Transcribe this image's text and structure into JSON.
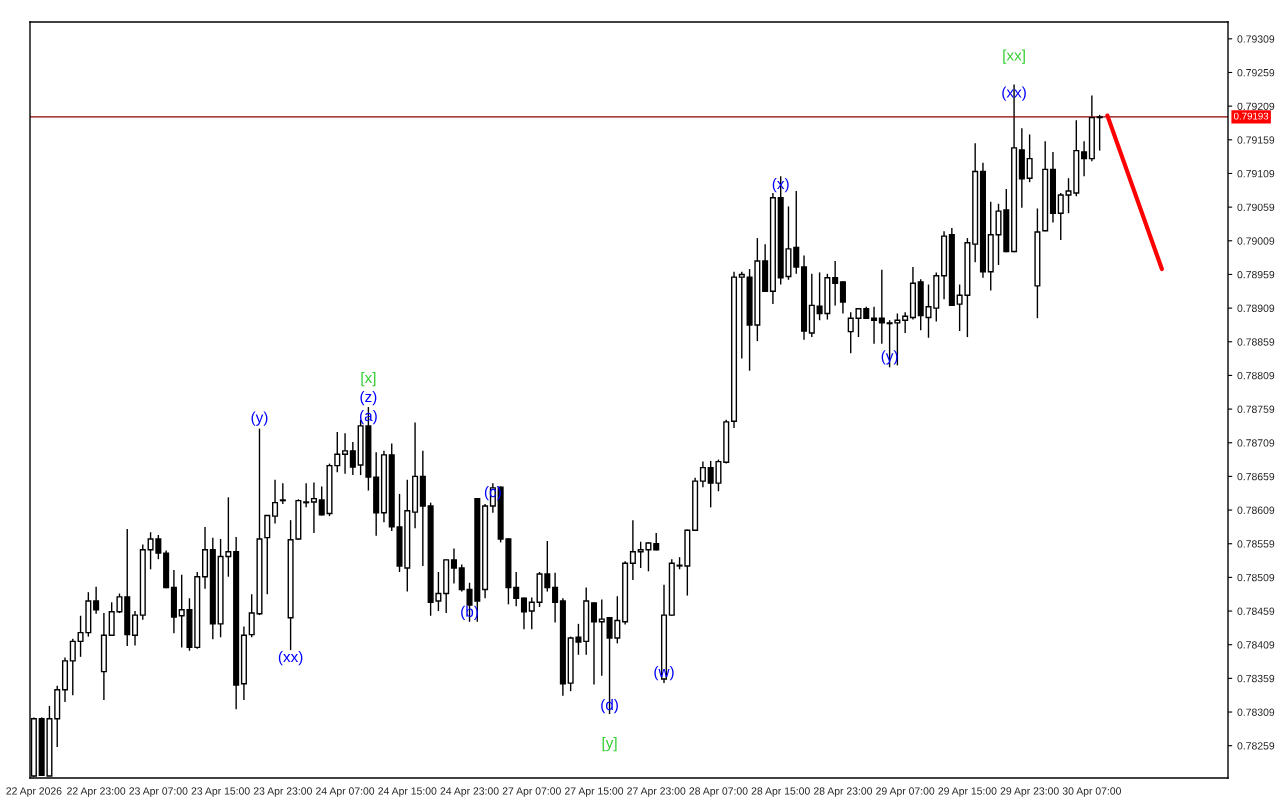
{
  "chart_data": {
    "type": "candlestick",
    "categories": [
      "22 Apr 2026",
      null,
      null,
      null,
      null,
      null,
      null,
      null,
      "22 Apr 23:00",
      null,
      null,
      null,
      null,
      null,
      null,
      null,
      "23 Apr 07:00",
      null,
      null,
      null,
      null,
      null,
      null,
      null,
      "23 Apr 15:00",
      null,
      null,
      null,
      null,
      null,
      null,
      null,
      "23 Apr 23:00",
      null,
      null,
      null,
      null,
      null,
      null,
      null,
      "24 Apr 07:00",
      null,
      null,
      null,
      null,
      null,
      null,
      null,
      "24 Apr 15:00",
      null,
      null,
      null,
      null,
      null,
      null,
      null,
      "24 Apr 23:00",
      null,
      null,
      null,
      null,
      null,
      null,
      null,
      "27 Apr 07:00",
      null,
      null,
      null,
      null,
      null,
      null,
      null,
      "27 Apr 15:00",
      null,
      null,
      null,
      null,
      null,
      null,
      null,
      "27 Apr 23:00",
      null,
      null,
      null,
      null,
      null,
      null,
      null,
      "28 Apr 07:00",
      null,
      null,
      null,
      null,
      null,
      null,
      null,
      "28 Apr 15:00",
      null,
      null,
      null,
      null,
      null,
      null,
      null,
      "28 Apr 23:00",
      null,
      null,
      null,
      null,
      null,
      null,
      null,
      "29 Apr 07:00",
      null,
      null,
      null,
      null,
      null,
      null,
      null,
      "29 Apr 15:00",
      null,
      null,
      null,
      null,
      null,
      null,
      null,
      "29 Apr 23:00",
      null,
      null,
      null,
      null,
      null,
      null,
      null,
      "30 Apr 07:00",
      null,
      null,
      null,
      null,
      null,
      null,
      null,
      null,
      null,
      null,
      null,
      null,
      null,
      null,
      null,
      null,
      null
    ],
    "ohlc": [
      [
        0.78214,
        0.78301,
        0.78213,
        0.78299
      ],
      [
        0.78299,
        0.78301,
        0.78214,
        0.78215
      ],
      [
        0.78214,
        0.78318,
        0.78214,
        0.78299
      ],
      [
        0.78299,
        0.78348,
        0.78257,
        0.78342
      ],
      [
        0.78342,
        0.7839,
        0.78324,
        0.78385
      ],
      [
        0.78385,
        0.78418,
        0.78334,
        0.78414
      ],
      [
        0.78414,
        0.78452,
        0.78391,
        0.78427
      ],
      [
        0.78427,
        0.78487,
        0.78421,
        0.78474
      ],
      [
        0.78474,
        0.78495,
        0.78455,
        0.78461
      ],
      [
        0.78369,
        0.78456,
        0.78327,
        0.78423
      ],
      [
        0.78423,
        0.78472,
        0.78423,
        0.78458
      ],
      [
        0.78458,
        0.78485,
        0.78456,
        0.7848
      ],
      [
        0.7848,
        0.78581,
        0.78407,
        0.78424
      ],
      [
        0.78423,
        0.78459,
        0.78408,
        0.78453
      ],
      [
        0.78453,
        0.78558,
        0.78446,
        0.7855
      ],
      [
        0.7855,
        0.78576,
        0.78521,
        0.78566
      ],
      [
        0.78566,
        0.78572,
        0.78536,
        0.78545
      ],
      [
        0.78545,
        0.78549,
        0.78493,
        0.78494
      ],
      [
        0.78494,
        0.7852,
        0.78426,
        0.7845
      ],
      [
        0.78452,
        0.78513,
        0.78405,
        0.78461
      ],
      [
        0.78461,
        0.78478,
        0.784,
        0.78405
      ],
      [
        0.78405,
        0.78517,
        0.78403,
        0.7851
      ],
      [
        0.7851,
        0.78584,
        0.78492,
        0.7855
      ],
      [
        0.7855,
        0.78568,
        0.78417,
        0.7844
      ],
      [
        0.7844,
        0.78566,
        0.7842,
        0.7854
      ],
      [
        0.7854,
        0.78628,
        0.7851,
        0.78547
      ],
      [
        0.78547,
        0.78569,
        0.78313,
        0.78349
      ],
      [
        0.78351,
        0.78436,
        0.78327,
        0.78423
      ],
      [
        0.78424,
        0.78484,
        0.7842,
        0.78456
      ],
      [
        0.78455,
        0.7873,
        0.78453,
        0.78566
      ],
      [
        0.78568,
        0.78601,
        0.78484,
        0.78601
      ],
      [
        0.786,
        0.78654,
        0.78589,
        0.7862
      ],
      [
        0.78624,
        0.78649,
        0.78618,
        0.78623
      ],
      [
        0.78449,
        0.78594,
        0.78401,
        0.78565
      ],
      [
        0.78566,
        0.78625,
        0.78565,
        0.78623
      ],
      [
        0.7862,
        0.78649,
        0.78613,
        0.78621
      ],
      [
        0.78621,
        0.7865,
        0.78575,
        0.78626
      ],
      [
        0.78624,
        0.78644,
        0.78601,
        0.78602
      ],
      [
        0.78604,
        0.78678,
        0.786,
        0.78675
      ],
      [
        0.78675,
        0.78725,
        0.78665,
        0.78692
      ],
      [
        0.78692,
        0.78723,
        0.78663,
        0.78697
      ],
      [
        0.78697,
        0.7871,
        0.78661,
        0.78673
      ],
      [
        0.78676,
        0.78743,
        0.78661,
        0.78734
      ],
      [
        0.78734,
        0.78762,
        0.78638,
        0.78658
      ],
      [
        0.78658,
        0.78695,
        0.78571,
        0.78605
      ],
      [
        0.78605,
        0.78697,
        0.78591,
        0.78691
      ],
      [
        0.78691,
        0.78708,
        0.78578,
        0.78584
      ],
      [
        0.78584,
        0.78633,
        0.78517,
        0.78526
      ],
      [
        0.78523,
        0.78654,
        0.78488,
        0.78608
      ],
      [
        0.78606,
        0.78739,
        0.78582,
        0.78659
      ],
      [
        0.78659,
        0.78697,
        0.78526,
        0.78615
      ],
      [
        0.78615,
        0.7862,
        0.78452,
        0.78472
      ],
      [
        0.78474,
        0.78517,
        0.78459,
        0.78485
      ],
      [
        0.78485,
        0.78536,
        0.78456,
        0.78535
      ],
      [
        0.78535,
        0.78552,
        0.785,
        0.78523
      ],
      [
        0.78523,
        0.78528,
        0.78488,
        0.78491
      ],
      [
        0.78491,
        0.78501,
        0.78443,
        0.78468
      ],
      [
        0.78626,
        0.78626,
        0.78443,
        0.78474
      ],
      [
        0.78491,
        0.78618,
        0.78478,
        0.78615
      ],
      [
        0.78615,
        0.78649,
        0.78605,
        0.78642
      ],
      [
        0.78643,
        0.78644,
        0.78561,
        0.78566
      ],
      [
        0.78566,
        0.78567,
        0.78469,
        0.78494
      ],
      [
        0.78494,
        0.78517,
        0.78466,
        0.78478
      ],
      [
        0.78478,
        0.78479,
        0.78432,
        0.78458
      ],
      [
        0.78459,
        0.78479,
        0.78432,
        0.78472
      ],
      [
        0.78472,
        0.78517,
        0.78465,
        0.78514
      ],
      [
        0.78514,
        0.78563,
        0.78488,
        0.78494
      ],
      [
        0.78494,
        0.78516,
        0.78442,
        0.78472
      ],
      [
        0.78474,
        0.78478,
        0.78333,
        0.78351
      ],
      [
        0.78352,
        0.78421,
        0.7834,
        0.78419
      ],
      [
        0.7842,
        0.7844,
        0.78394,
        0.78413
      ],
      [
        0.78414,
        0.78494,
        0.78394,
        0.78474
      ],
      [
        0.78471,
        0.78472,
        0.7835,
        0.78443
      ],
      [
        0.78443,
        0.78476,
        0.78363,
        0.78447
      ],
      [
        0.78449,
        0.7845,
        0.78306,
        0.78419
      ],
      [
        0.78419,
        0.78481,
        0.78411,
        0.78445
      ],
      [
        0.78443,
        0.78533,
        0.78439,
        0.7853
      ],
      [
        0.7853,
        0.78594,
        0.78505,
        0.78547
      ],
      [
        0.78547,
        0.78562,
        0.78523,
        0.7855
      ],
      [
        0.7855,
        0.78561,
        0.78518,
        0.7856
      ],
      [
        0.78559,
        0.78575,
        0.78549,
        0.7855
      ],
      [
        0.78358,
        0.78498,
        0.78352,
        0.78453
      ],
      [
        0.78453,
        0.78536,
        0.78452,
        0.7853
      ],
      [
        0.78527,
        0.78539,
        0.78521,
        0.78526
      ],
      [
        0.78526,
        0.7858,
        0.78482,
        0.78579
      ],
      [
        0.78579,
        0.78657,
        0.78578,
        0.78652
      ],
      [
        0.78652,
        0.78681,
        0.78643,
        0.78672
      ],
      [
        0.78672,
        0.78682,
        0.78613,
        0.78649
      ],
      [
        0.78649,
        0.78684,
        0.78637,
        0.78681
      ],
      [
        0.7868,
        0.78743,
        0.78678,
        0.7874
      ],
      [
        0.78741,
        0.78963,
        0.78731,
        0.78955
      ],
      [
        0.78955,
        0.78963,
        0.78834,
        0.78959
      ],
      [
        0.78955,
        0.78967,
        0.78816,
        0.78884
      ],
      [
        0.78884,
        0.79013,
        0.7886,
        0.78979
      ],
      [
        0.78979,
        0.79004,
        0.78933,
        0.78934
      ],
      [
        0.78934,
        0.7908,
        0.78915,
        0.79073
      ],
      [
        0.79073,
        0.79105,
        0.78944,
        0.78954
      ],
      [
        0.78956,
        0.7906,
        0.78951,
        0.78997
      ],
      [
        0.78999,
        0.79083,
        0.7896,
        0.7897
      ],
      [
        0.7897,
        0.78987,
        0.78862,
        0.78875
      ],
      [
        0.78872,
        0.7896,
        0.78866,
        0.78913
      ],
      [
        0.78912,
        0.78962,
        0.78891,
        0.78901
      ],
      [
        0.78901,
        0.7896,
        0.78892,
        0.78954
      ],
      [
        0.78954,
        0.78979,
        0.78913,
        0.78946
      ],
      [
        0.78948,
        0.78949,
        0.78901,
        0.78918
      ],
      [
        0.78874,
        0.78903,
        0.78842,
        0.78894
      ],
      [
        0.78894,
        0.78909,
        0.78866,
        0.78908
      ],
      [
        0.78908,
        0.78911,
        0.78893,
        0.78894
      ],
      [
        0.78894,
        0.78911,
        0.78856,
        0.78891
      ],
      [
        0.78894,
        0.78966,
        0.78856,
        0.78887
      ],
      [
        0.78887,
        0.78891,
        0.78821,
        0.78886
      ],
      [
        0.78887,
        0.78901,
        0.78824,
        0.78891
      ],
      [
        0.78891,
        0.78903,
        0.78872,
        0.78897
      ],
      [
        0.78895,
        0.7897,
        0.78892,
        0.78946
      ],
      [
        0.78948,
        0.78952,
        0.78876,
        0.78898
      ],
      [
        0.78895,
        0.78944,
        0.78865,
        0.78911
      ],
      [
        0.78909,
        0.78962,
        0.78889,
        0.78957
      ],
      [
        0.78957,
        0.79023,
        0.78922,
        0.79016
      ],
      [
        0.79018,
        0.79028,
        0.78912,
        0.78913
      ],
      [
        0.78915,
        0.78944,
        0.78875,
        0.78928
      ],
      [
        0.78928,
        0.79013,
        0.78866,
        0.79006
      ],
      [
        0.79004,
        0.79154,
        0.78977,
        0.79112
      ],
      [
        0.79112,
        0.79125,
        0.78954,
        0.78963
      ],
      [
        0.78963,
        0.79067,
        0.78935,
        0.79018
      ],
      [
        0.79018,
        0.79064,
        0.78973,
        0.79053
      ],
      [
        0.79055,
        0.79086,
        0.78992,
        0.78993
      ],
      [
        0.78993,
        0.79241,
        0.78992,
        0.79147
      ],
      [
        0.79144,
        0.79176,
        0.79058,
        0.79101
      ],
      [
        0.79102,
        0.79167,
        0.79096,
        0.79131
      ],
      [
        0.78942,
        0.79057,
        0.78894,
        0.79022
      ],
      [
        0.79024,
        0.79157,
        0.79023,
        0.79115
      ],
      [
        0.79115,
        0.79141,
        0.79036,
        0.7905
      ],
      [
        0.7905,
        0.7908,
        0.7901,
        0.79077
      ],
      [
        0.79077,
        0.79102,
        0.7905,
        0.79083
      ],
      [
        0.7908,
        0.79188,
        0.79075,
        0.79143
      ],
      [
        0.79141,
        0.79157,
        0.79105,
        0.79131
      ],
      [
        0.79131,
        0.79225,
        0.79127,
        0.79192
      ],
      [
        0.79192,
        0.79196,
        0.79143,
        0.79193
      ],
      null,
      null,
      null,
      null,
      null,
      null,
      null,
      null,
      null,
      null,
      null,
      null,
      null,
      null,
      null,
      null
    ],
    "series": [
      {
        "type": "line",
        "values": [
          null,
          null,
          null,
          null,
          null,
          null,
          null,
          null,
          null,
          null,
          null,
          null,
          null,
          null,
          null,
          null,
          null,
          null,
          null,
          null,
          null,
          null,
          null,
          null,
          null,
          null,
          null,
          null,
          null,
          null,
          null,
          null,
          null,
          null,
          null,
          null,
          null,
          null,
          null,
          null,
          null,
          null,
          null,
          null,
          null,
          null,
          null,
          null,
          null,
          null,
          null,
          null,
          null,
          null,
          null,
          null,
          null,
          null,
          null,
          null,
          null,
          null,
          null,
          null,
          null,
          null,
          null,
          null,
          null,
          null,
          null,
          null,
          null,
          null,
          null,
          null,
          null,
          null,
          null,
          null,
          null,
          null,
          null,
          null,
          null,
          null,
          null,
          null,
          null,
          null,
          null,
          null,
          null,
          null,
          null,
          null,
          null,
          null,
          null,
          null,
          null,
          null,
          null,
          null,
          null,
          null,
          null,
          null,
          null,
          null,
          null,
          null,
          null,
          null,
          null,
          null,
          null,
          null,
          null,
          null,
          null,
          null,
          null,
          null,
          null,
          null,
          null,
          null,
          null,
          null,
          null,
          null,
          null,
          null,
          null,
          null,
          null,
          null,
          0.79195,
          null,
          null,
          null,
          null,
          null,
          null,
          0.78967,
          null,
          null,
          null,
          null,
          null,
          null,
          null,
          null
        ],
        "color": "#ff0000"
      }
    ],
    "ylim": [
      0.78211,
      0.79334
    ],
    "yticks": [
      0.78259,
      0.78309,
      0.78359,
      0.78409,
      0.78459,
      0.78509,
      0.78559,
      0.78609,
      0.78659,
      0.78709,
      0.78759,
      0.78809,
      0.78859,
      0.78909,
      0.78959,
      0.79009,
      0.79059,
      0.79109,
      0.79159,
      0.79209,
      0.79259,
      0.79309
    ],
    "ref_lines": [
      {
        "axis": "y",
        "value": 0.79193,
        "label": "0.79193",
        "color": "#8b0000"
      }
    ],
    "annotations": [
      "[xx]",
      "(xx)",
      "(x)",
      "(y)",
      "[x]",
      "(z)",
      "(a)",
      "(y)",
      "(xx)",
      "(c)",
      "(b)",
      "(d)",
      "[y]",
      "(w)"
    ],
    "grid": false
  }
}
